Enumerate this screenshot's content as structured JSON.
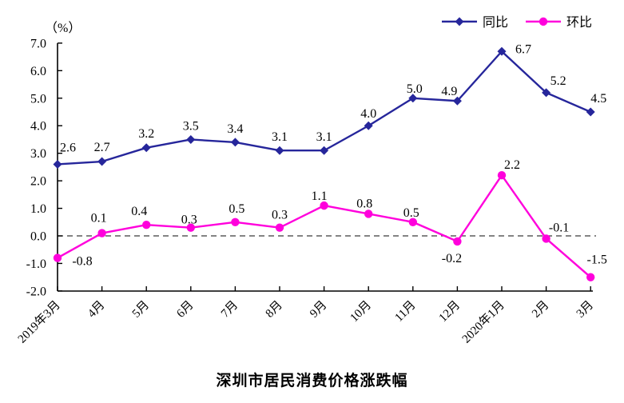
{
  "chart_data": {
    "type": "line",
    "title": "深圳市居民消费价格涨跌幅",
    "unit_label": "（%）",
    "categories": [
      "2019年3月",
      "4月",
      "5月",
      "6月",
      "7月",
      "8月",
      "9月",
      "10月",
      "11月",
      "12月",
      "2020年1月",
      "2月",
      "3月"
    ],
    "series": [
      {
        "name": "同比",
        "marker": "diamond",
        "color": "#26269B",
        "values": [
          2.6,
          2.7,
          3.2,
          3.5,
          3.4,
          3.1,
          3.1,
          4.0,
          5.0,
          4.9,
          6.7,
          5.2,
          4.5
        ]
      },
      {
        "name": "环比",
        "marker": "circle",
        "color": "#FF00DC",
        "values": [
          -0.8,
          0.1,
          0.4,
          0.3,
          0.5,
          0.3,
          1.1,
          0.8,
          0.5,
          -0.2,
          2.2,
          -0.1,
          -1.5
        ]
      }
    ],
    "ylim": [
      -2.0,
      7.0
    ],
    "ytick_step": 1.0,
    "ytick_labels": [
      "7.0",
      "6.0",
      "5.0",
      "4.0",
      "3.0",
      "2.0",
      "1.0",
      "0.0",
      "-1.0",
      "-2.0"
    ],
    "zero_line": "dashed",
    "grid": "off",
    "legend_position": "top-right",
    "text_color": "#000000",
    "axis_color": "#000000"
  }
}
